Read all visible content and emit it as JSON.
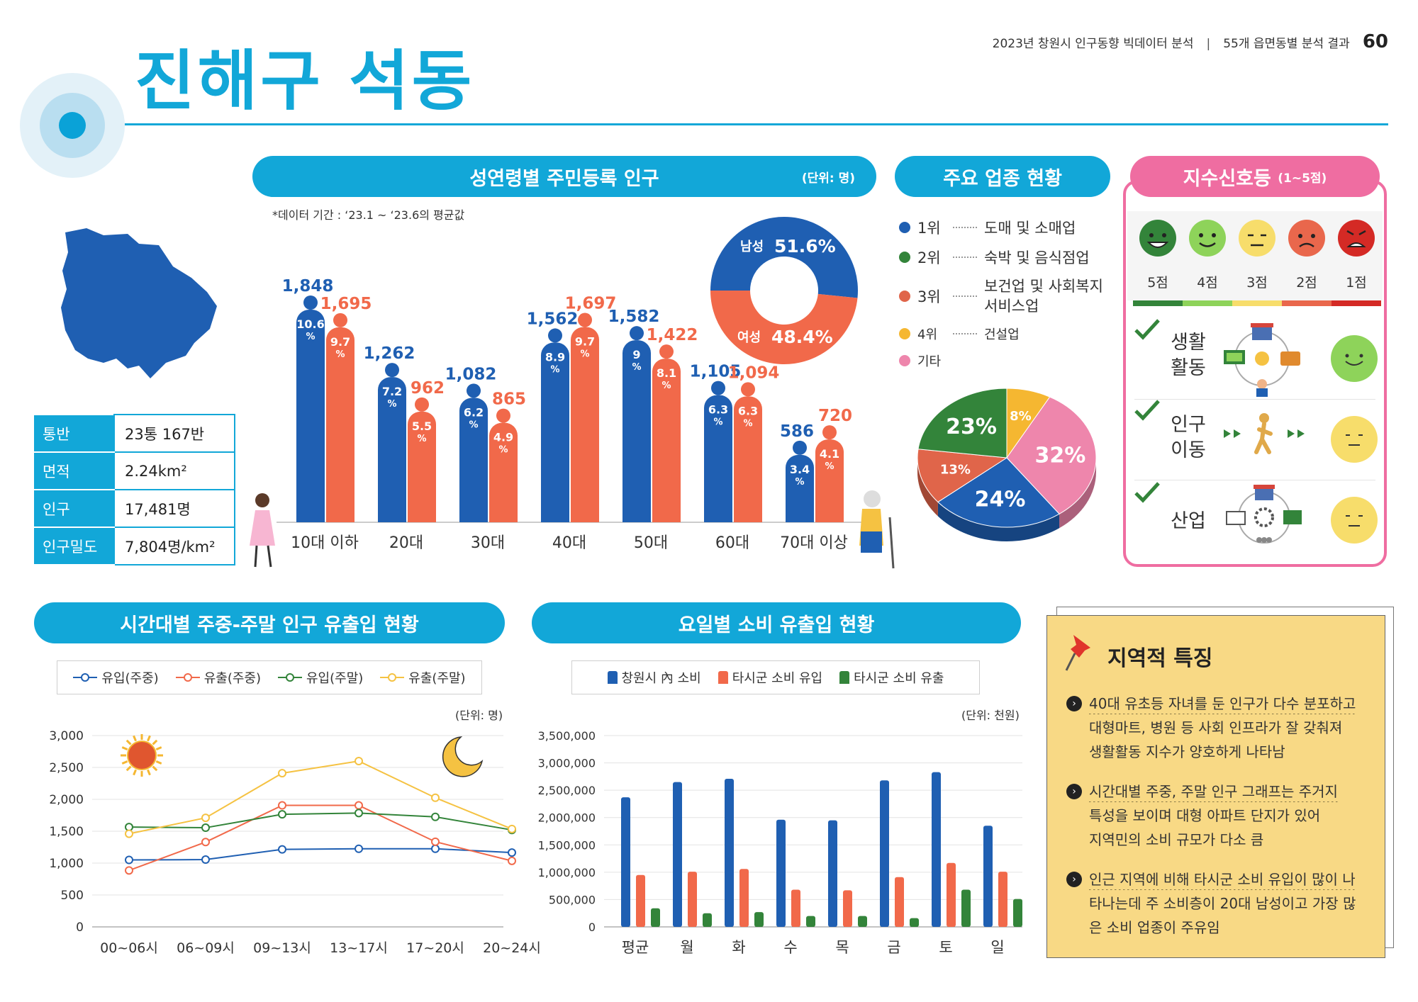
{
  "header": {
    "title": "진해구 석동",
    "report_title": "2023년 창원시 인구동향 빅데이터 분석",
    "report_sub": "55개 읍면동별 분석 결과",
    "page_number": "60"
  },
  "stats": [
    {
      "key": "통반",
      "value": "23통 167반"
    },
    {
      "key": "면적",
      "value": "2.24km²"
    },
    {
      "key": "인구",
      "value": "17,481명"
    },
    {
      "key": "인구밀도",
      "value": "7,804명/km²"
    }
  ],
  "sections": {
    "population": {
      "title": "성연령별 주민등록 인구",
      "unit": "(단위: 명)",
      "note": "*데이터 기간 : ‘23.1 ~ ‘23.6의 평균값"
    },
    "industry": {
      "title": "주요 업종 현황"
    },
    "signal": {
      "title": "지수신호등",
      "title_sub": "(1~5점)"
    },
    "flow": {
      "title": "시간대별 주중-주말 인구 유출입 현황",
      "unit": "(단위: 명)"
    },
    "consumption": {
      "title": "요일별 소비 유출입 현황",
      "unit": "(단위: 천원)"
    }
  },
  "industry_legend": [
    {
      "rank": "1위",
      "name": "도매 및 소매업",
      "color": "#1f5fb2"
    },
    {
      "rank": "2위",
      "name": "숙박 및 음식점업",
      "color": "#33843a"
    },
    {
      "rank": "3위",
      "name": "보건업 및 사회복지 서비스업",
      "color": "#e0654a"
    },
    {
      "rank": "4위",
      "name": "건설업",
      "color": "#f5b731"
    },
    {
      "rank": "기타",
      "name": "",
      "color": "#ee86ac"
    }
  ],
  "signal": {
    "scale": [
      {
        "label": "5점",
        "color": "#33843a"
      },
      {
        "label": "4점",
        "color": "#8ed35a"
      },
      {
        "label": "3점",
        "color": "#f7dd6b"
      },
      {
        "label": "2점",
        "color": "#e9674c"
      },
      {
        "label": "1점",
        "color": "#d42a25"
      }
    ],
    "rows": [
      {
        "label_line1": "생활",
        "label_line2": "활동",
        "score": 4
      },
      {
        "label_line1": "인구",
        "label_line2": "이동",
        "score": 3
      },
      {
        "label_line1": "산업",
        "label_line2": "",
        "score": 3
      }
    ]
  },
  "features": {
    "title": "지역적 특징",
    "items": [
      [
        "40대 유초등 자녀를 둔 인구가 다수 분포하고",
        "대형마트, 병원 등 사회 인프라가 잘 갖춰져",
        "생활활동 지수가 양호하게 나타남"
      ],
      [
        "시간대별 주중, 주말 인구 그래프는 주거지",
        "특성을 보이며 대형 아파트 단지가 있어",
        "지역민의 소비 규모가 다소 큼"
      ],
      [
        "인근 지역에 비해 타시군 소비 유입이 많이 나",
        "타나는데 주 소비층이 20대 남성이고 가장 많",
        "은 소비 업종이 주유임"
      ]
    ]
  },
  "chart_data": [
    {
      "type": "bar",
      "categories": [
        "10대 이하",
        "20대",
        "30대",
        "40대",
        "50대",
        "60대",
        "70대 이상"
      ],
      "series": [
        {
          "name": "남성",
          "values": [
            1848,
            1262,
            1082,
            1562,
            1582,
            1105,
            586
          ],
          "labels": [
            "1,848",
            "1,262",
            "1,082",
            "1,562",
            "1,582",
            "1,105",
            "586"
          ],
          "pct": [
            "10.6",
            "7.2",
            "6.2",
            "8.9",
            "9",
            "6.3",
            "3.4"
          ],
          "color": "#1f5fb2"
        },
        {
          "name": "여성",
          "values": [
            1695,
            962,
            865,
            1697,
            1422,
            1094,
            720
          ],
          "labels": [
            "1,695",
            "962",
            "865",
            "1,697",
            "1,422",
            "1,094",
            "720"
          ],
          "pct": [
            "9.7",
            "5.5",
            "4.9",
            "9.7",
            "8.1",
            "6.3",
            "4.1"
          ],
          "color": "#f1694a"
        }
      ],
      "ylim": [
        0,
        2000
      ]
    },
    {
      "type": "pie",
      "slices": [
        {
          "name": "남성",
          "value": 51.6,
          "color": "#1f5fb2"
        },
        {
          "name": "여성",
          "value": 48.4,
          "color": "#f1694a"
        }
      ]
    },
    {
      "type": "pie",
      "slices": [
        {
          "name": "1위",
          "value": 24,
          "color": "#1f5fb2"
        },
        {
          "name": "2위",
          "value": 23,
          "color": "#33843a"
        },
        {
          "name": "3위",
          "value": 13,
          "color": "#e0654a"
        },
        {
          "name": "4위",
          "value": 8,
          "color": "#f5b731"
        },
        {
          "name": "기타",
          "value": 32,
          "color": "#ee86ac"
        }
      ]
    },
    {
      "type": "line",
      "categories": [
        "00~06시",
        "06~09시",
        "09~13시",
        "13~17시",
        "17~20시",
        "20~24시"
      ],
      "series": [
        {
          "name": "유입(주중)",
          "values": [
            1050,
            1055,
            1215,
            1225,
            1225,
            1165
          ],
          "color": "#1f5fb2"
        },
        {
          "name": "유출(주중)",
          "values": [
            885,
            1330,
            1905,
            1905,
            1335,
            1035
          ],
          "color": "#f1694a"
        },
        {
          "name": "유입(주말)",
          "values": [
            1565,
            1555,
            1765,
            1785,
            1725,
            1520
          ],
          "color": "#33843a"
        },
        {
          "name": "유출(주말)",
          "values": [
            1460,
            1710,
            2410,
            2600,
            2025,
            1535
          ],
          "color": "#f5c242"
        }
      ],
      "ylim": [
        0,
        3000
      ],
      "yticks": [
        "3,000",
        "2,500",
        "2,000",
        "1,500",
        "1,000",
        "500",
        "0"
      ]
    },
    {
      "type": "bar",
      "categories": [
        "평균",
        "월",
        "화",
        "수",
        "목",
        "금",
        "토",
        "일"
      ],
      "series": [
        {
          "name": "창원시 內 소비",
          "values": [
            2370000,
            2650000,
            2710000,
            1960000,
            1950000,
            2680000,
            2830000,
            1850000
          ],
          "color": "#1f5fb2"
        },
        {
          "name": "타시군 소비 유입",
          "values": [
            950000,
            1010000,
            1060000,
            680000,
            670000,
            910000,
            1170000,
            1010000
          ],
          "color": "#f1694a"
        },
        {
          "name": "타시군 소비 유출",
          "values": [
            340000,
            250000,
            270000,
            200000,
            200000,
            160000,
            680000,
            510000
          ],
          "color": "#33843a"
        }
      ],
      "ylim": [
        0,
        3500000
      ],
      "yticks": [
        "3,500,000",
        "3,000,000",
        "2,500,000",
        "2,000,000",
        "1,500,000",
        "1,000,000",
        "500,000",
        "0"
      ]
    }
  ]
}
